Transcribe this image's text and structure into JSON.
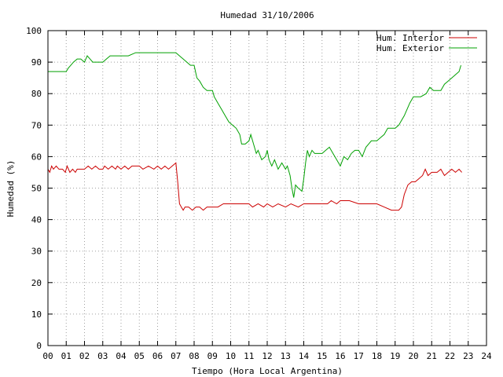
{
  "chart_data": {
    "type": "line",
    "title": "Humedad 31/10/2006",
    "xlabel": "Tiempo (Hora Local Argentina)",
    "ylabel": "Humedad (%)",
    "xlim": [
      0,
      24
    ],
    "ylim": [
      0,
      100
    ],
    "x_ticks": [
      "00",
      "01",
      "02",
      "03",
      "04",
      "05",
      "06",
      "07",
      "08",
      "09",
      "10",
      "11",
      "12",
      "13",
      "14",
      "15",
      "16",
      "17",
      "18",
      "19",
      "20",
      "21",
      "22",
      "23",
      "24"
    ],
    "y_ticks": [
      "0",
      "10",
      "20",
      "30",
      "40",
      "50",
      "60",
      "70",
      "80",
      "90",
      "100"
    ],
    "grid": true,
    "legend_position": "top-right",
    "series": [
      {
        "name": "Hum. Interior",
        "color": "#cc0000",
        "points": [
          [
            0.0,
            56
          ],
          [
            0.1,
            55
          ],
          [
            0.2,
            57
          ],
          [
            0.3,
            56
          ],
          [
            0.45,
            57
          ],
          [
            0.6,
            56
          ],
          [
            0.8,
            56
          ],
          [
            0.95,
            55
          ],
          [
            1.05,
            57
          ],
          [
            1.2,
            55
          ],
          [
            1.35,
            56
          ],
          [
            1.5,
            55
          ],
          [
            1.6,
            56
          ],
          [
            2.0,
            56
          ],
          [
            2.2,
            57
          ],
          [
            2.4,
            56
          ],
          [
            2.6,
            57
          ],
          [
            2.8,
            56
          ],
          [
            3.0,
            56
          ],
          [
            3.1,
            57
          ],
          [
            3.3,
            56
          ],
          [
            3.5,
            57
          ],
          [
            3.7,
            56
          ],
          [
            3.8,
            57
          ],
          [
            4.0,
            56
          ],
          [
            4.2,
            57
          ],
          [
            4.4,
            56
          ],
          [
            4.6,
            57
          ],
          [
            5.0,
            57
          ],
          [
            5.2,
            56
          ],
          [
            5.5,
            57
          ],
          [
            5.8,
            56
          ],
          [
            6.0,
            57
          ],
          [
            6.2,
            56
          ],
          [
            6.4,
            57
          ],
          [
            6.6,
            56
          ],
          [
            6.8,
            57
          ],
          [
            7.0,
            58
          ],
          [
            7.1,
            52
          ],
          [
            7.2,
            45
          ],
          [
            7.3,
            44
          ],
          [
            7.4,
            43
          ],
          [
            7.5,
            44
          ],
          [
            7.7,
            44
          ],
          [
            7.9,
            43
          ],
          [
            8.1,
            44
          ],
          [
            8.3,
            44
          ],
          [
            8.5,
            43
          ],
          [
            8.7,
            44
          ],
          [
            9.0,
            44
          ],
          [
            9.3,
            44
          ],
          [
            9.6,
            45
          ],
          [
            10.0,
            45
          ],
          [
            10.5,
            45
          ],
          [
            11.0,
            45
          ],
          [
            11.2,
            44
          ],
          [
            11.5,
            45
          ],
          [
            11.8,
            44
          ],
          [
            12.0,
            45
          ],
          [
            12.3,
            44
          ],
          [
            12.6,
            45
          ],
          [
            13.0,
            44
          ],
          [
            13.3,
            45
          ],
          [
            13.7,
            44
          ],
          [
            14.0,
            45
          ],
          [
            14.5,
            45
          ],
          [
            15.0,
            45
          ],
          [
            15.3,
            45
          ],
          [
            15.5,
            46
          ],
          [
            15.8,
            45
          ],
          [
            16.0,
            46
          ],
          [
            16.5,
            46
          ],
          [
            17.0,
            45
          ],
          [
            17.5,
            45
          ],
          [
            18.0,
            45
          ],
          [
            18.4,
            44
          ],
          [
            18.8,
            43
          ],
          [
            19.2,
            43
          ],
          [
            19.35,
            44
          ],
          [
            19.5,
            48
          ],
          [
            19.7,
            51
          ],
          [
            19.9,
            52
          ],
          [
            20.1,
            52
          ],
          [
            20.3,
            53
          ],
          [
            20.5,
            54
          ],
          [
            20.65,
            56
          ],
          [
            20.8,
            54
          ],
          [
            21.0,
            55
          ],
          [
            21.3,
            55
          ],
          [
            21.5,
            56
          ],
          [
            21.7,
            54
          ],
          [
            21.9,
            55
          ],
          [
            22.1,
            56
          ],
          [
            22.3,
            55
          ],
          [
            22.5,
            56
          ],
          [
            22.65,
            55
          ]
        ]
      },
      {
        "name": "Hum. Exterior",
        "color": "#00a000",
        "points": [
          [
            0.0,
            87
          ],
          [
            0.5,
            87
          ],
          [
            1.0,
            87
          ],
          [
            1.1,
            88
          ],
          [
            1.25,
            89
          ],
          [
            1.4,
            90
          ],
          [
            1.6,
            91
          ],
          [
            1.8,
            91
          ],
          [
            2.0,
            90
          ],
          [
            2.15,
            92
          ],
          [
            2.3,
            91
          ],
          [
            2.45,
            90
          ],
          [
            2.7,
            90
          ],
          [
            3.0,
            90
          ],
          [
            3.2,
            91
          ],
          [
            3.4,
            92
          ],
          [
            3.7,
            92
          ],
          [
            4.0,
            92
          ],
          [
            4.4,
            92
          ],
          [
            4.8,
            93
          ],
          [
            5.2,
            93
          ],
          [
            5.6,
            93
          ],
          [
            6.0,
            93
          ],
          [
            6.5,
            93
          ],
          [
            7.0,
            93
          ],
          [
            7.2,
            92
          ],
          [
            7.4,
            91
          ],
          [
            7.6,
            90
          ],
          [
            7.8,
            89
          ],
          [
            8.0,
            89
          ],
          [
            8.15,
            85
          ],
          [
            8.3,
            84
          ],
          [
            8.5,
            82
          ],
          [
            8.7,
            81
          ],
          [
            9.0,
            81
          ],
          [
            9.1,
            79
          ],
          [
            9.3,
            77
          ],
          [
            9.5,
            75
          ],
          [
            9.7,
            73
          ],
          [
            9.9,
            71
          ],
          [
            10.1,
            70
          ],
          [
            10.3,
            69
          ],
          [
            10.5,
            67
          ],
          [
            10.6,
            64
          ],
          [
            10.8,
            64
          ],
          [
            11.0,
            65
          ],
          [
            11.1,
            67
          ],
          [
            11.25,
            64
          ],
          [
            11.4,
            61
          ],
          [
            11.5,
            62
          ],
          [
            11.7,
            59
          ],
          [
            11.9,
            60
          ],
          [
            12.0,
            62
          ],
          [
            12.1,
            59
          ],
          [
            12.25,
            57
          ],
          [
            12.4,
            59
          ],
          [
            12.6,
            56
          ],
          [
            12.8,
            58
          ],
          [
            13.0,
            56
          ],
          [
            13.1,
            57
          ],
          [
            13.25,
            54
          ],
          [
            13.35,
            50
          ],
          [
            13.45,
            47
          ],
          [
            13.55,
            51
          ],
          [
            13.7,
            50
          ],
          [
            13.9,
            49
          ],
          [
            14.0,
            53
          ],
          [
            14.1,
            58
          ],
          [
            14.2,
            62
          ],
          [
            14.3,
            60
          ],
          [
            14.45,
            62
          ],
          [
            14.6,
            61
          ],
          [
            14.8,
            61
          ],
          [
            15.0,
            61
          ],
          [
            15.2,
            62
          ],
          [
            15.4,
            63
          ],
          [
            15.6,
            61
          ],
          [
            15.8,
            59
          ],
          [
            16.0,
            57
          ],
          [
            16.2,
            60
          ],
          [
            16.4,
            59
          ],
          [
            16.6,
            61
          ],
          [
            16.8,
            62
          ],
          [
            17.0,
            62
          ],
          [
            17.2,
            60
          ],
          [
            17.4,
            63
          ],
          [
            17.55,
            64
          ],
          [
            17.7,
            65
          ],
          [
            18.0,
            65
          ],
          [
            18.2,
            66
          ],
          [
            18.4,
            67
          ],
          [
            18.6,
            69
          ],
          [
            19.0,
            69
          ],
          [
            19.2,
            70
          ],
          [
            19.5,
            73
          ],
          [
            19.8,
            77
          ],
          [
            20.0,
            79
          ],
          [
            20.4,
            79
          ],
          [
            20.7,
            80
          ],
          [
            20.9,
            82
          ],
          [
            21.1,
            81
          ],
          [
            21.3,
            81
          ],
          [
            21.5,
            81
          ],
          [
            21.7,
            83
          ],
          [
            21.9,
            84
          ],
          [
            22.1,
            85
          ],
          [
            22.3,
            86
          ],
          [
            22.5,
            87
          ],
          [
            22.6,
            89
          ]
        ]
      }
    ]
  }
}
